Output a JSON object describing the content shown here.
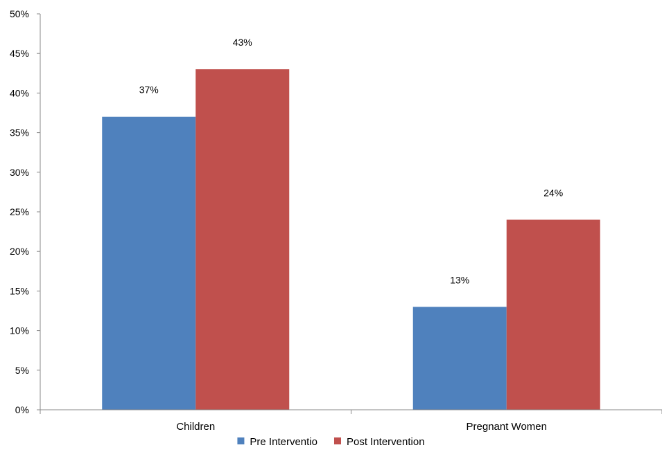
{
  "chart_data": {
    "type": "bar",
    "categories": [
      "Children",
      "Pregnant Women"
    ],
    "series": [
      {
        "name": "Pre Interventio",
        "values": [
          37,
          13
        ],
        "labels": [
          "37%",
          "13%"
        ],
        "color": "#4F81BD"
      },
      {
        "name": "Post Intervention",
        "values": [
          43,
          24
        ],
        "labels": [
          "43%",
          "24%"
        ],
        "color": "#C0504D"
      }
    ],
    "ylim": [
      0,
      50
    ],
    "ytick_labels": [
      "0%",
      "5%",
      "10%",
      "15%",
      "20%",
      "25%",
      "30%",
      "35%",
      "40%",
      "45%",
      "50%"
    ],
    "grid": false,
    "legend_position": "bottom"
  }
}
